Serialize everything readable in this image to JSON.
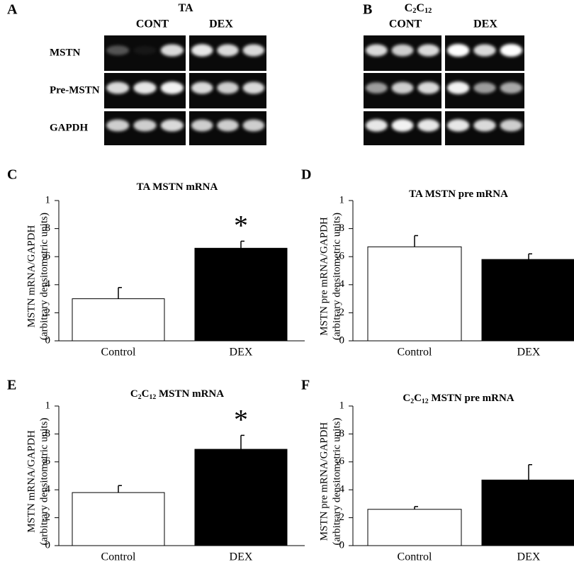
{
  "gels": [
    {
      "letter": "A",
      "title": "TA",
      "groups": [
        "CONT",
        "DEX"
      ],
      "rows": [
        "MSTN",
        "Pre-MSTN",
        "GAPDH"
      ]
    },
    {
      "letter": "B",
      "title": "C2C12",
      "groups": [
        "CONT",
        "DEX"
      ]
    }
  ],
  "chart_data": [
    {
      "type": "bar",
      "panel": "C",
      "title": "TA MSTN mRNA",
      "ylabel": [
        "MSTN mRNA/GAPDH",
        "(arbitrary densitometric units)"
      ],
      "categories": [
        "Control",
        "DEX"
      ],
      "values": [
        0.3,
        0.66
      ],
      "errors": [
        0.08,
        0.05
      ],
      "colors": [
        "#ffffff",
        "#000000"
      ],
      "annotation": "*",
      "ylim": [
        0,
        1
      ],
      "yticks": [
        0,
        {
          "value": 0.2,
          "label": ".2"
        },
        {
          "value": 0.4,
          "label": ".4"
        },
        {
          "value": 0.6,
          "label": ".6"
        },
        {
          "value": 0.8,
          "label": ".8"
        },
        1
      ]
    },
    {
      "type": "bar",
      "panel": "D",
      "title": "TA MSTN pre mRNA",
      "ylabel": [
        "MSTN pre mRNA/GAPDH",
        "(arbitrary densitometric units)"
      ],
      "categories": [
        "Control",
        "DEX"
      ],
      "values": [
        0.67,
        0.58
      ],
      "errors": [
        0.08,
        0.04
      ],
      "colors": [
        "#ffffff",
        "#000000"
      ],
      "ylim": [
        0,
        1
      ],
      "yticks": [
        0,
        {
          "value": 0.2,
          "label": ".2"
        },
        {
          "value": 0.4,
          "label": ".4"
        },
        {
          "value": 0.6,
          "label": ".6"
        },
        {
          "value": 0.8,
          "label": ".8"
        },
        1
      ]
    },
    {
      "type": "bar",
      "panel": "E",
      "title": "C2C12 MSTN mRNA",
      "ylabel": [
        "MSTN mRNA/GAPDH",
        "(arbitrary densitometric units)"
      ],
      "categories": [
        "Control",
        "DEX"
      ],
      "values": [
        0.38,
        0.69
      ],
      "errors": [
        0.05,
        0.1
      ],
      "colors": [
        "#ffffff",
        "#000000"
      ],
      "annotation": "*",
      "ylim": [
        0,
        1
      ],
      "yticks": [
        0,
        {
          "value": 0.2,
          "label": ".2"
        },
        {
          "value": 0.4,
          "label": ".4"
        },
        {
          "value": 0.6,
          "label": ".6"
        },
        {
          "value": 0.8,
          "label": ".8"
        },
        1
      ]
    },
    {
      "type": "bar",
      "panel": "F",
      "title": "C2C12 MSTN pre mRNA",
      "ylabel": [
        "MSTN pre mRNA/GAPDH",
        "(arbitrary densitometric units)"
      ],
      "categories": [
        "Control",
        "DEX"
      ],
      "values": [
        0.26,
        0.47
      ],
      "errors": [
        0.02,
        0.11
      ],
      "colors": [
        "#ffffff",
        "#000000"
      ],
      "ylim": [
        0,
        1
      ],
      "yticks": [
        0,
        {
          "value": 0.2,
          "label": ".2"
        },
        {
          "value": 0.4,
          "label": ".4"
        },
        {
          "value": 0.6,
          "label": ".6"
        },
        {
          "value": 0.8,
          "label": ".8"
        },
        1
      ]
    }
  ]
}
